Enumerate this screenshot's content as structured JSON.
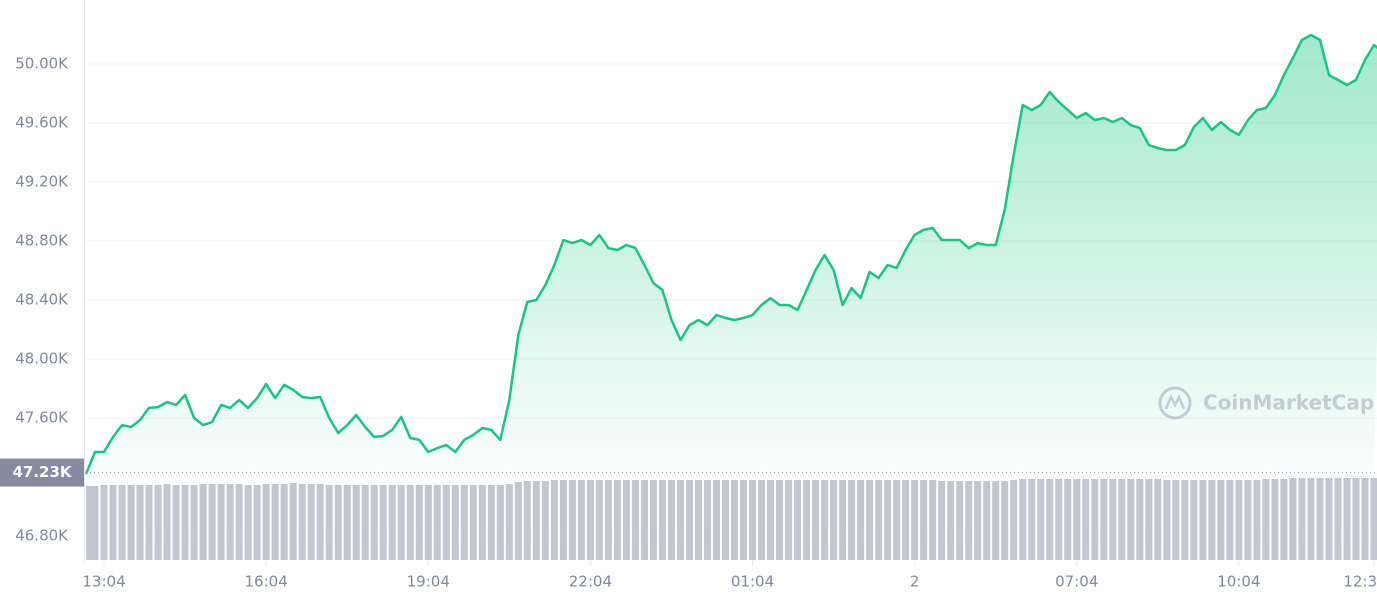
{
  "chart_data": {
    "type": "area",
    "watermark": "CoinMarketCap",
    "color": "#16c784",
    "values": [
      47220,
      47369,
      47369,
      47471,
      47552,
      47539,
      47586,
      47668,
      47674,
      47708,
      47688,
      47756,
      47600,
      47552,
      47573,
      47688,
      47668,
      47722,
      47668,
      47735,
      47830,
      47735,
      47824,
      47790,
      47742,
      47735,
      47742,
      47600,
      47498,
      47552,
      47620,
      47539,
      47471,
      47478,
      47519,
      47607,
      47464,
      47451,
      47369,
      47396,
      47417,
      47369,
      47451,
      47485,
      47532,
      47519,
      47451,
      47722,
      48163,
      48386,
      48400,
      48502,
      48637,
      48807,
      48786,
      48807,
      48773,
      48841,
      48752,
      48739,
      48773,
      48752,
      48637,
      48515,
      48468,
      48264,
      48129,
      48230,
      48264,
      48230,
      48298,
      48278,
      48264,
      48278,
      48298,
      48366,
      48413,
      48366,
      48366,
      48332,
      48468,
      48603,
      48705,
      48603,
      48366,
      48481,
      48413,
      48590,
      48549,
      48637,
      48617,
      48739,
      48841,
      48875,
      48888,
      48807,
      48807,
      48807,
      48752,
      48786,
      48773,
      48773,
      49010,
      49383,
      49722,
      49688,
      49722,
      49810,
      49742,
      49688,
      49634,
      49668,
      49620,
      49634,
      49607,
      49634,
      49586,
      49566,
      49451,
      49430,
      49417,
      49417,
      49451,
      49573,
      49634,
      49553,
      49607,
      49553,
      49519,
      49620,
      49688,
      49702,
      49790,
      49925,
      50041,
      50163,
      50197,
      50163,
      49925,
      49892,
      49858,
      49892,
      50027,
      50129,
      50081
    ],
    "xlim": [
      0,
      143
    ],
    "xticks": [
      {
        "value": 2,
        "label": "13:04"
      },
      {
        "value": 20,
        "label": "16:04"
      },
      {
        "value": 38,
        "label": "19:04"
      },
      {
        "value": 56,
        "label": "22:04"
      },
      {
        "value": 74,
        "label": "01:04"
      },
      {
        "value": 92,
        "label": "2"
      },
      {
        "value": 110,
        "label": "07:04"
      },
      {
        "value": 128,
        "label": "10:04"
      },
      {
        "value": 143,
        "label": "12:3"
      }
    ],
    "ylim": [
      46637,
      50434
    ],
    "yticks": [
      {
        "value": 46800,
        "label": "46.80K"
      },
      {
        "value": 47600,
        "label": "47.60K"
      },
      {
        "value": 48000,
        "label": "48.00K"
      },
      {
        "value": 48400,
        "label": "48.40K"
      },
      {
        "value": 48800,
        "label": "48.80K"
      },
      {
        "value": 49200,
        "label": "49.20K"
      },
      {
        "value": 49600,
        "label": "49.60K"
      },
      {
        "value": 50000,
        "label": "50.00K"
      }
    ],
    "grid": true,
    "reference": {
      "value": 47230,
      "label": "47.23K"
    },
    "volume": {
      "color": "#c3c6d1",
      "ylim": [
        0,
        100
      ],
      "values": [
        74,
        74,
        75,
        75,
        75,
        75,
        75,
        75,
        75,
        76,
        75,
        75,
        75,
        76,
        76,
        76,
        76,
        76,
        75,
        75,
        76,
        76,
        76,
        77,
        76,
        76,
        76,
        75,
        75,
        75,
        75,
        75,
        75,
        75,
        75,
        75,
        75,
        75,
        75,
        75,
        75,
        75,
        75,
        75,
        75,
        75,
        75,
        76,
        78,
        79,
        79,
        79,
        80,
        80,
        80,
        80,
        80,
        80,
        80,
        80,
        80,
        80,
        80,
        80,
        80,
        80,
        80,
        80,
        80,
        80,
        80,
        80,
        80,
        80,
        80,
        80,
        80,
        80,
        80,
        80,
        80,
        80,
        80,
        80,
        80,
        80,
        80,
        80,
        80,
        80,
        80,
        80,
        80,
        80,
        80,
        79,
        79,
        79,
        79,
        79,
        79,
        79,
        79,
        80,
        81,
        81,
        81,
        81,
        81,
        81,
        81,
        81,
        81,
        81,
        81,
        81,
        81,
        81,
        81,
        81,
        80,
        80,
        80,
        80,
        80,
        80,
        80,
        80,
        80,
        80,
        80,
        81,
        81,
        81,
        82,
        82,
        82,
        82,
        82,
        82,
        82,
        82,
        82,
        82
      ]
    }
  }
}
